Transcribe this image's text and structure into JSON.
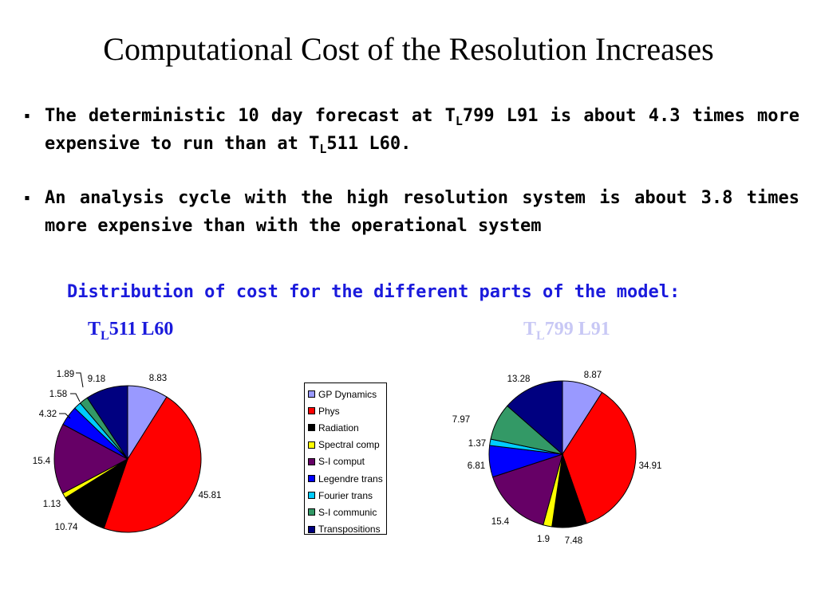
{
  "title": "Computational Cost of the Resolution Increases",
  "bullets": [
    {
      "parts": [
        "The deterministic 10 day forecast at T",
        "L",
        "799 L91 is about 4.3 times more expensive to run than at T",
        "L",
        "511 L60."
      ]
    },
    {
      "parts": [
        "An analysis cycle with the high resolution system is about 3.8 times more expensive than with the operational system"
      ]
    }
  ],
  "bullet_marker": "▪",
  "subtitle": "Distribution of cost for the different parts of the model:",
  "chart_data": [
    {
      "type": "pie",
      "title_parts": [
        "T",
        "L",
        "511 L60"
      ],
      "title_color": "#1a1adc",
      "categories": [
        "GP Dynamics",
        "Phys",
        "Radiation",
        "Spectral comp",
        "S-I comput",
        "Legendre trans",
        "Fourier trans",
        "S-I communic",
        "Transpositions"
      ],
      "values": [
        8.83,
        45.81,
        10.74,
        1.13,
        15.4,
        4.32,
        1.58,
        1.89,
        9.18
      ],
      "labels": [
        "8.83",
        "45.81",
        "10.74",
        "1.13",
        "15.4",
        "4.32",
        "1.58",
        "1.89",
        "9.18"
      ]
    },
    {
      "type": "pie",
      "title_parts": [
        "T",
        "L",
        "799 L91"
      ],
      "title_color": "#c8c8f5",
      "categories": [
        "GP Dynamics",
        "Phys",
        "Radiation",
        "Spectral comp",
        "S-I comput",
        "Legendre trans",
        "Fourier trans",
        "S-I communic",
        "Transpositions"
      ],
      "values": [
        8.87,
        34.91,
        7.48,
        1.9,
        15.4,
        6.81,
        1.37,
        7.97,
        13.28
      ],
      "labels": [
        "8.87",
        "34.91",
        "7.48",
        "1.9",
        "15.4",
        "6.81",
        "1.37",
        "7.97",
        "13.28"
      ]
    }
  ],
  "legend": {
    "items": [
      "GP Dynamics",
      "Phys",
      "Radiation",
      "Spectral comp",
      "S-I comput",
      "Legendre trans",
      "Fourier trans",
      "S-I communic",
      "Transpositions"
    ],
    "colors": [
      "#9999ff",
      "#ff0000",
      "#000000",
      "#ffff00",
      "#660066",
      "#0000ff",
      "#00ccff",
      "#339966",
      "#000080"
    ],
    "placement": "center"
  }
}
